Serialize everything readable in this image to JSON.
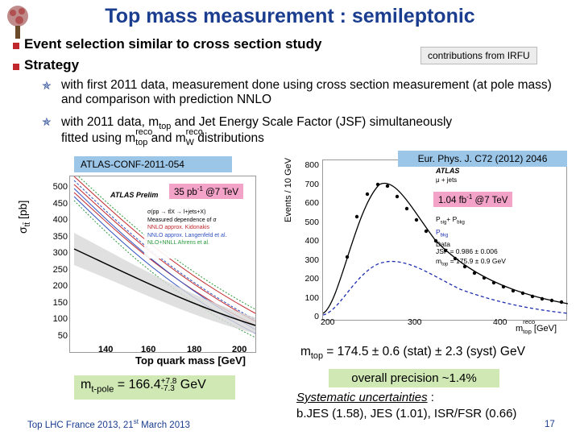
{
  "slide": {
    "title": "Top mass measurement : semileptonic",
    "bullets": [
      "Event selection similar to cross section study",
      "Strategy"
    ],
    "sub_bullets": [
      "with first 2011 data, measurement done using cross section measurement (at pole mass) and comparison with prediction NNLO",
      "with 2011 data, m",
      "top",
      " and Jet Energy Scale Factor (JSF) simultaneously",
      "fitted using m",
      "reco",
      "top",
      " and m",
      "reco",
      "W",
      " distributions"
    ],
    "contributions_tag": "contributions from IRFU",
    "left_ref": "ATLAS-CONF-2011-054",
    "left_lumi": "35 pb",
    "left_lumi_sup": "-1",
    "left_lumi_rest": " @7 TeV",
    "right_ref": "Eur. Phys. J. C72 (2012) 2046",
    "right_lumi": "1.04 fb",
    "right_lumi_sup": "-1",
    "right_lumi_rest": " @7 TeV",
    "mtop_pole_prefix": "m",
    "mtop_pole_sub": "t-pole",
    "mtop_pole_value": " = 166.4",
    "mtop_pole_up": "+7.8",
    "mtop_pole_down": "-7.3",
    "mtop_pole_unit": " GeV",
    "mtop_result_prefix": "m",
    "mtop_result_sub": "top",
    "mtop_result_rest": " = 174.5 ± 0.6 (stat) ± 2.3 (syst) GeV",
    "precision": "overall precision ~1.4%",
    "syst_heading": "Systematic uncertainties",
    "syst_colon": " :",
    "syst_line": "b.JES (1.58), JES (1.01), ISR/FSR (0.66)",
    "footer": "Top LHC France 2013, 21",
    "footer_sup": "st",
    "footer_rest": " March 2013",
    "page_number": "17"
  },
  "left_plot": {
    "ylabel": "σ",
    "ylabel_sub": "tt̄",
    "ylabel_unit": " [pb]",
    "xlabel": "Top quark mass [GeV]",
    "yticks": [
      "500",
      "450",
      "400",
      "350",
      "300",
      "250",
      "200",
      "150",
      "100",
      "50"
    ],
    "xticks": [
      "140",
      "160",
      "180",
      "200"
    ],
    "atlas_label": "ATLAS Prelim",
    "legend": [
      "σ(pp → tt̄X → l+jets+X)",
      "Measured dependence of σ",
      "NNLO approx. Kidonakis",
      "NNLO approx. Langenfeld et al.",
      "NLO+NNLL Ahrens et al."
    ]
  },
  "right_plot": {
    "ylabel": "Events / 10 GeV",
    "xlabel_prefix": "m",
    "xlabel_sup": "reco",
    "xlabel_sub": "top",
    "xlabel_unit": " [GeV]",
    "yticks": [
      "800",
      "700",
      "600",
      "500",
      "400",
      "300",
      "200",
      "100",
      "0"
    ],
    "xticks": [
      "200",
      "300",
      "400"
    ],
    "atlas_label": "ATLAS",
    "channel": "μ + jets",
    "legend": [
      "P",
      "sig",
      "+ P",
      "bkg",
      "P",
      "bkg",
      "Data"
    ],
    "jsf_line": "JSF = 0.986 ± 0.006",
    "mtop_line": "m",
    "mtop_line_sub": "top",
    "mtop_line_rest": " = 175.9 ± 0.9 GeV",
    "colors": {
      "signal": "#000000",
      "background": "#1f2fb0",
      "data": "#000000"
    }
  }
}
